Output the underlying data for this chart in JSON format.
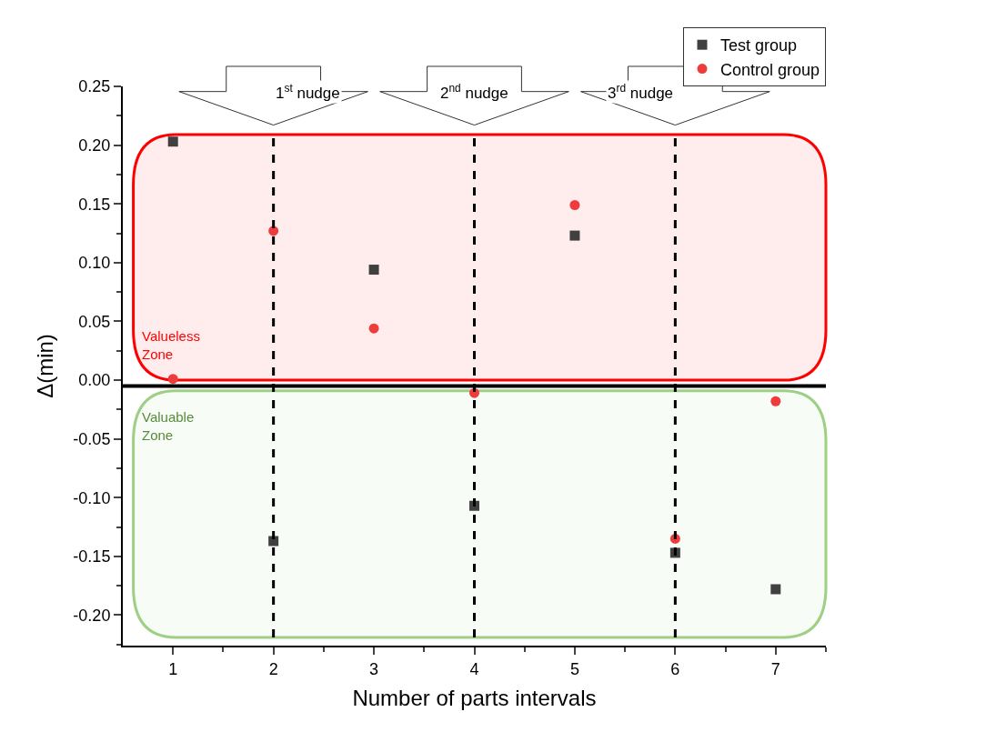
{
  "chart_data": {
    "type": "scatter",
    "xlabel": "Number of parts intervals",
    "ylabel": "Δ(min)",
    "x": [
      1,
      2,
      3,
      4,
      5,
      6,
      7
    ],
    "series": [
      {
        "name": "Test group",
        "color": "#404040",
        "marker": "square",
        "values": [
          0.203,
          -0.137,
          0.094,
          -0.107,
          0.123,
          -0.147,
          -0.178
        ]
      },
      {
        "name": "Control group",
        "color": "#ee3b3b",
        "marker": "circle",
        "values": [
          0.001,
          0.127,
          0.044,
          -0.011,
          0.149,
          -0.135,
          -0.018
        ]
      }
    ],
    "xlim": [
      0.5,
      7.5
    ],
    "xticks": [
      1,
      2,
      3,
      4,
      5,
      6,
      7,
      {
        "value": 1.5,
        "label": null
      },
      {
        "value": 2.5,
        "label": null
      },
      {
        "value": 3.5,
        "label": null
      },
      {
        "value": 4.5,
        "label": null
      },
      {
        "value": 5.5,
        "label": null
      },
      {
        "value": 6.5,
        "label": null
      },
      {
        "value": 7.5,
        "label": null
      }
    ],
    "ylim": [
      -0.226,
      0.25
    ],
    "yticks": [
      {
        "value": -0.2,
        "label": "-0.20"
      },
      {
        "value": -0.15,
        "label": "-0.15"
      },
      {
        "value": -0.1,
        "label": "-0.10"
      },
      {
        "value": -0.05,
        "label": "-0.05"
      },
      {
        "value": 0,
        "label": "0.00"
      },
      {
        "value": 0.05,
        "label": "0.05"
      },
      {
        "value": 0.1,
        "label": "0.10"
      },
      {
        "value": 0.15,
        "label": "0.15"
      },
      {
        "value": 0.2,
        "label": "0.20"
      },
      {
        "value": 0.25,
        "label": "0.25"
      },
      {
        "value": -0.225,
        "label": null
      },
      {
        "value": -0.175,
        "label": null
      },
      {
        "value": -0.125,
        "label": null
      },
      {
        "value": -0.075,
        "label": null
      },
      {
        "value": -0.025,
        "label": null
      },
      {
        "value": 0.025,
        "label": null
      },
      {
        "value": 0.075,
        "label": null
      },
      {
        "value": 0.125,
        "label": null
      },
      {
        "value": 0.175,
        "label": null
      },
      {
        "value": 0.225,
        "label": null
      }
    ],
    "ref_lines": [
      {
        "axis": "x",
        "value": 2,
        "color": "#000000",
        "line_style": "dashed"
      },
      {
        "axis": "x",
        "value": 4,
        "color": "#000000",
        "line_style": "dashed"
      },
      {
        "axis": "x",
        "value": 6,
        "color": "#000000",
        "line_style": "dashed"
      },
      {
        "axis": "y",
        "value": -0.005,
        "color": "#000000",
        "line_style": "solid"
      }
    ],
    "bands": [
      {
        "axis": "y",
        "from": 0.0,
        "to": 0.209,
        "label": "Valueless Zone",
        "color": "#ff0000"
      },
      {
        "axis": "y",
        "from": -0.219,
        "to": -0.009,
        "label": "Valuable Zone",
        "color": "#9dcf85"
      }
    ],
    "annotations": [
      "1$^{st}$ nudge",
      "2$^{nd}$ nudge",
      "3$^{rd}$ nudge"
    ],
    "grid": false,
    "legend": "top right"
  }
}
